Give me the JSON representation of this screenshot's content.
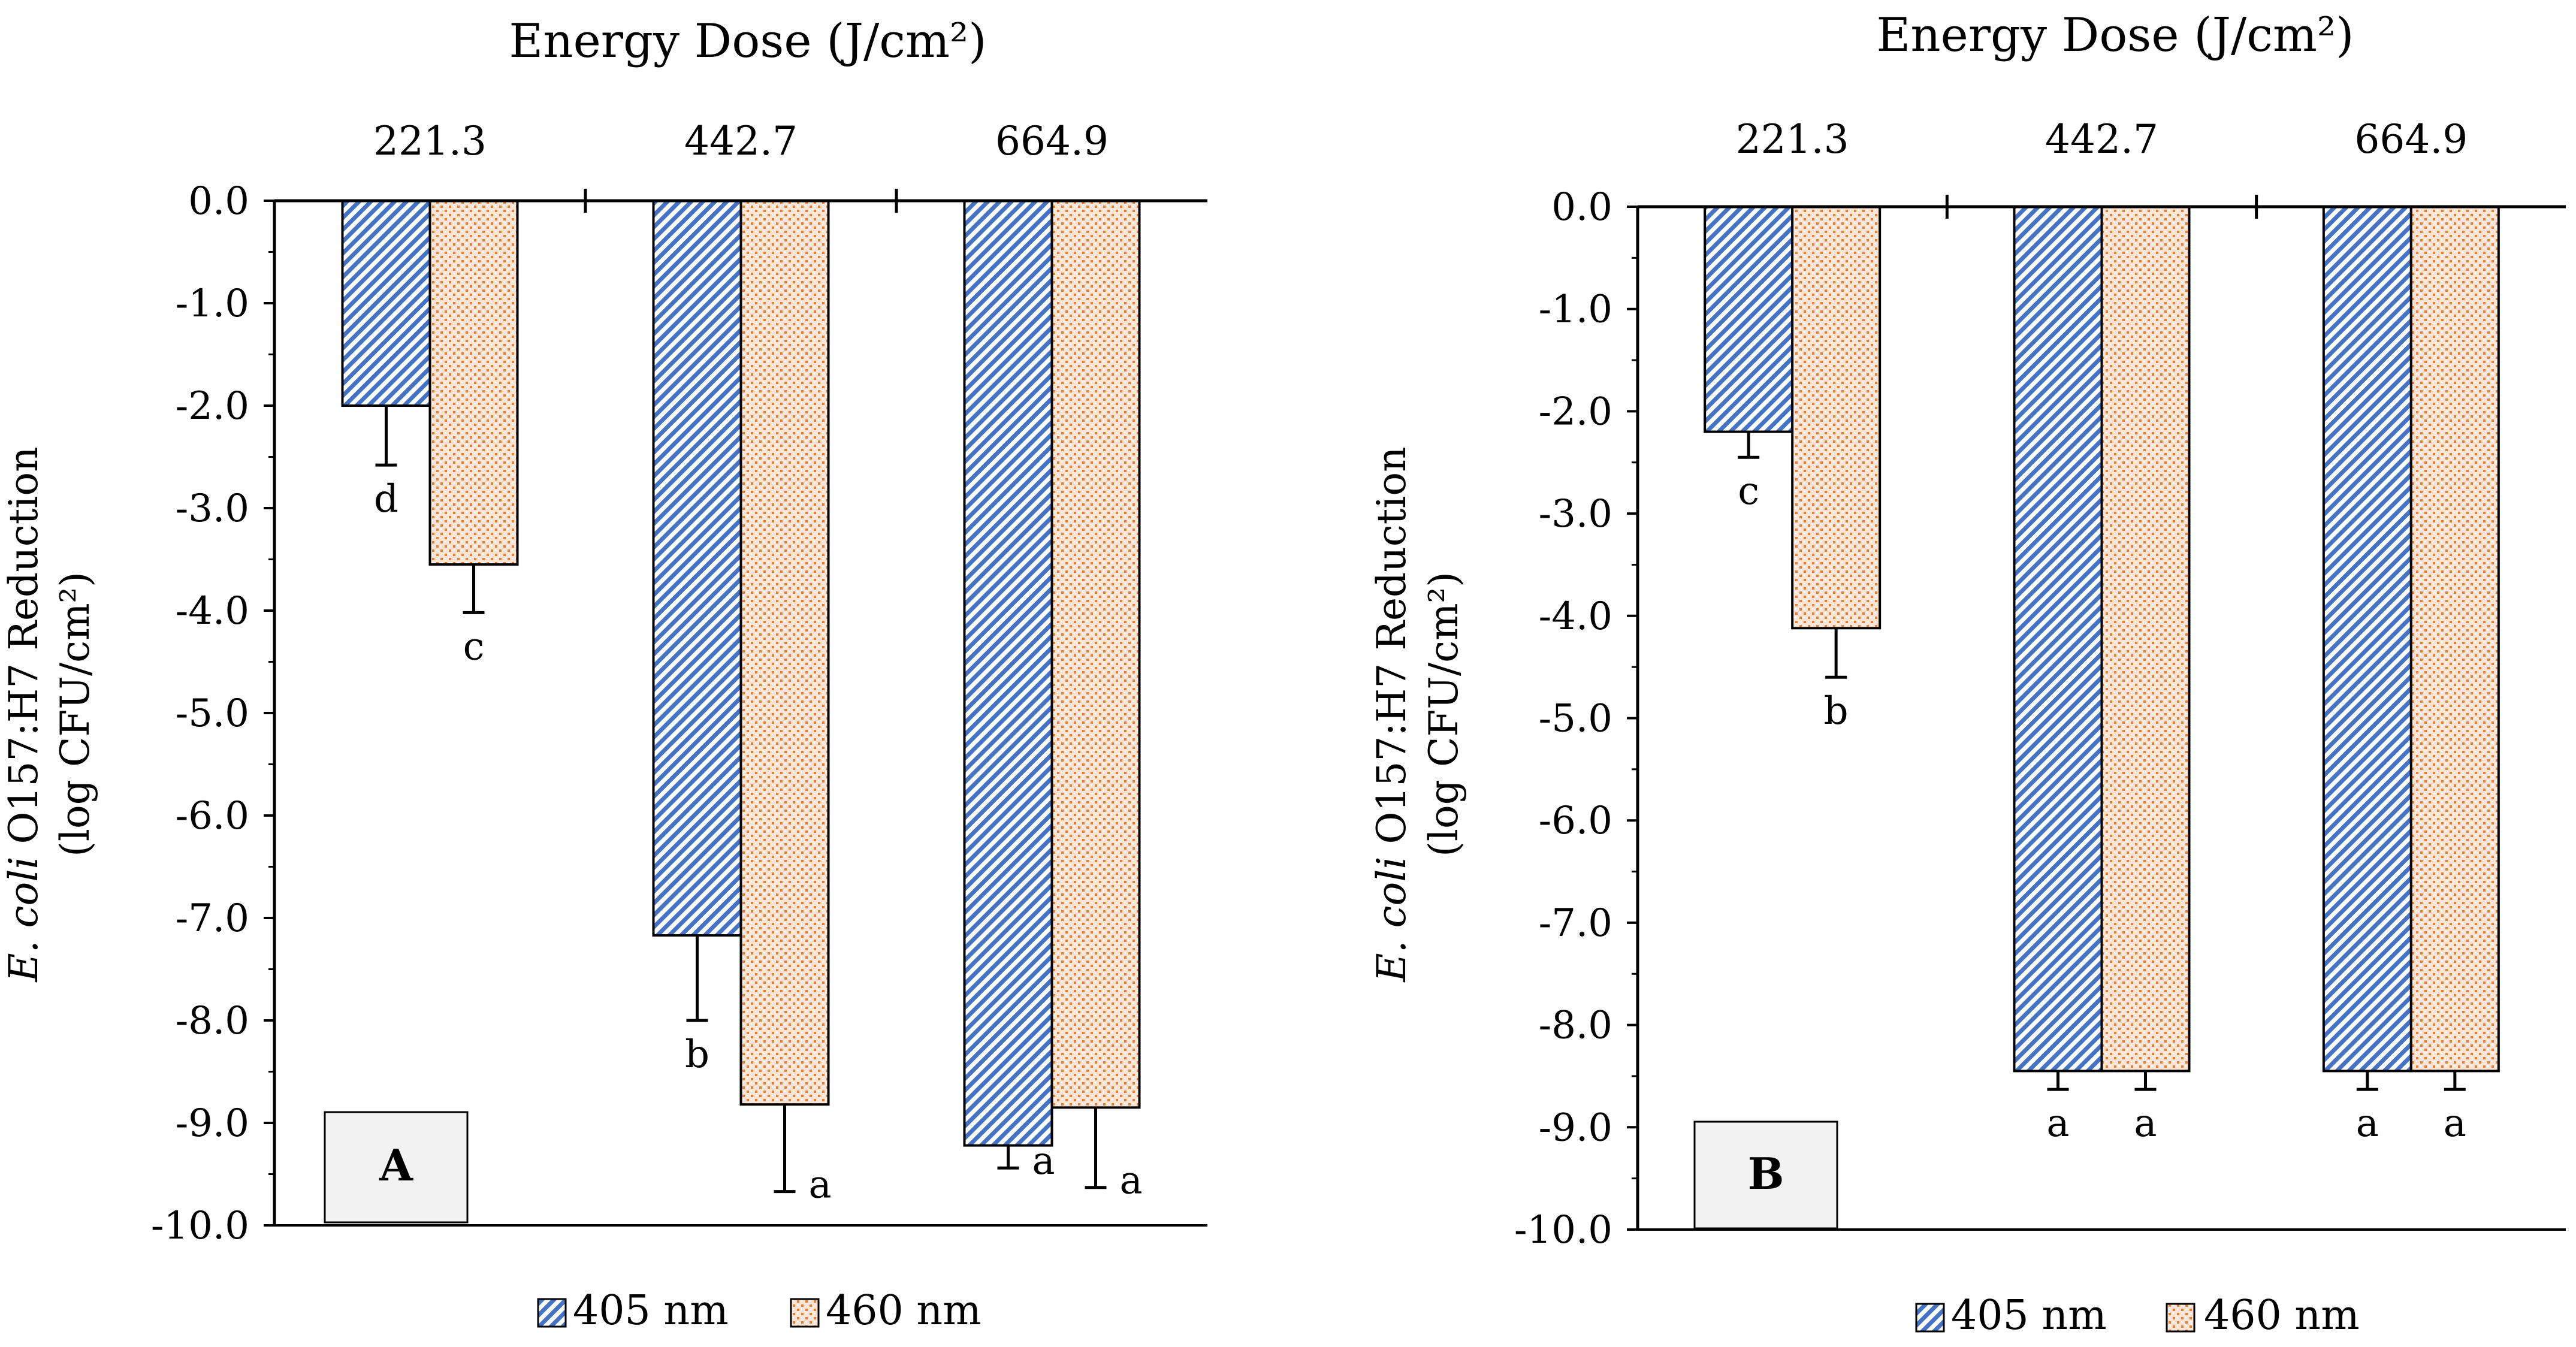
{
  "colors": {
    "nm405_stripe": "#4472c4",
    "nm460_pattern": "#ed7d31",
    "axis": "#000000",
    "panel_label_bg": "#f2f2f2"
  },
  "chart_data": [
    {
      "panel": "A",
      "type": "bar",
      "title": "Energy Dose (J/cm²)",
      "ylabel_italic": "E. coli",
      "ylabel_rest": " O157:H7 Reduction",
      "ylabel_line2": "(log CFU/cm²)",
      "categories": [
        "221.3",
        "442.7",
        "664.9"
      ],
      "ylim": [
        -10.0,
        0.0
      ],
      "yticks": [
        "0.0",
        "-1.0",
        "-2.0",
        "-3.0",
        "-4.0",
        "-5.0",
        "-6.0",
        "-7.0",
        "-8.0",
        "-9.0",
        "-10.0"
      ],
      "series": [
        {
          "name": "405 nm",
          "values": [
            -2.0,
            -7.17,
            -9.22
          ],
          "errors": [
            0.58,
            0.83,
            0.22
          ],
          "letters": [
            "d",
            "b",
            "a"
          ]
        },
        {
          "name": "460 nm",
          "values": [
            -3.55,
            -8.82,
            -8.85
          ],
          "errors": [
            0.47,
            0.85,
            0.78
          ],
          "letters": [
            "c",
            "a",
            "a"
          ]
        }
      ],
      "legend": "bottom"
    },
    {
      "panel": "B",
      "type": "bar",
      "title": "Energy Dose (J/cm²)",
      "ylabel_italic": "E. coli",
      "ylabel_rest": " O157:H7 Reduction",
      "ylabel_line2": "(log CFU/cm²)",
      "categories": [
        "221.3",
        "442.7",
        "664.9"
      ],
      "ylim": [
        -10.0,
        0.0
      ],
      "yticks": [
        "0.0",
        "-1.0",
        "-2.0",
        "-3.0",
        "-4.0",
        "-5.0",
        "-6.0",
        "-7.0",
        "-8.0",
        "-9.0",
        "-10.0"
      ],
      "series": [
        {
          "name": "405 nm",
          "values": [
            -2.2,
            -8.45,
            -8.45
          ],
          "errors": [
            0.25,
            0.18,
            0.18
          ],
          "letters": [
            "c",
            "a",
            "a"
          ]
        },
        {
          "name": "460 nm",
          "values": [
            -4.12,
            -8.45,
            -8.45
          ],
          "errors": [
            0.48,
            0.18,
            0.18
          ],
          "letters": [
            "b",
            "a",
            "a"
          ]
        }
      ],
      "legend": "bottom"
    }
  ]
}
